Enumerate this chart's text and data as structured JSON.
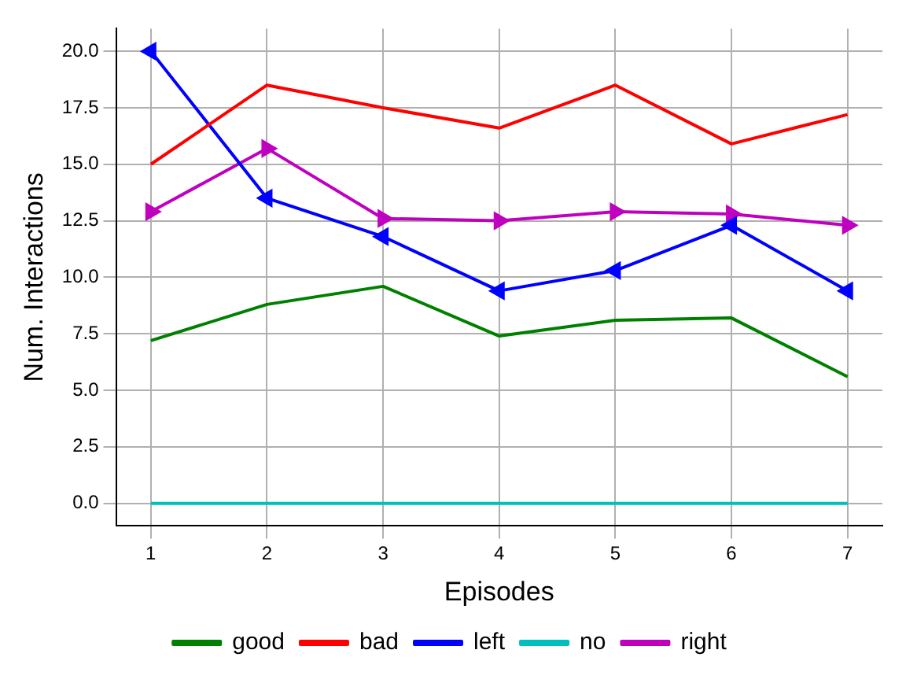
{
  "chart_data": {
    "type": "line",
    "xlabel": "Episodes",
    "ylabel": "Num. Interactions",
    "x": [
      1,
      2,
      3,
      4,
      5,
      6,
      7
    ],
    "series": [
      {
        "name": "good",
        "color": "#008000",
        "marker": "none",
        "values": [
          7.2,
          8.8,
          9.6,
          7.4,
          8.1,
          8.2,
          5.6
        ]
      },
      {
        "name": "bad",
        "color": "#ff0000",
        "marker": "none",
        "values": [
          15.0,
          18.5,
          17.5,
          16.6,
          18.5,
          15.9,
          17.2
        ]
      },
      {
        "name": "left",
        "color": "#0000ff",
        "marker": "triangle",
        "values": [
          20.0,
          13.5,
          11.8,
          9.4,
          10.3,
          12.3,
          9.4
        ]
      },
      {
        "name": "no",
        "color": "#00bfbf",
        "marker": "none",
        "values": [
          0,
          0,
          0,
          0,
          0,
          0,
          0
        ]
      },
      {
        "name": "right",
        "color": "#bf00bf",
        "marker": "triangle",
        "values": [
          12.9,
          15.7,
          12.6,
          12.5,
          12.9,
          12.8,
          12.3
        ]
      }
    ],
    "xlim": [
      0.7,
      7.3
    ],
    "xticks": [
      1,
      2,
      3,
      4,
      5,
      6,
      7
    ],
    "ylim": [
      -1,
      21
    ],
    "yticks": [
      {
        "value": 0,
        "label": "0.0"
      },
      {
        "value": 2.5,
        "label": "2.5"
      },
      {
        "value": 5,
        "label": "5.0"
      },
      {
        "value": 7.5,
        "label": "7.5"
      },
      {
        "value": 10,
        "label": "10.0"
      },
      {
        "value": 12.5,
        "label": "12.5"
      },
      {
        "value": 15,
        "label": "15.0"
      },
      {
        "value": 17.5,
        "label": "17.5"
      },
      {
        "value": 20,
        "label": "20.0"
      }
    ],
    "grid": true,
    "legend": "bottom",
    "line_style": "solid"
  }
}
